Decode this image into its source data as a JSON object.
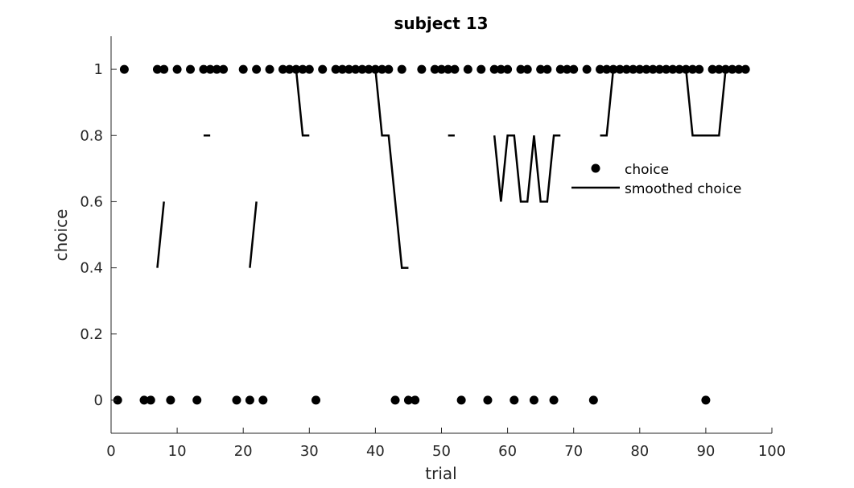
{
  "chart_data": {
    "type": "line",
    "title": "subject 13",
    "xlabel": "trial",
    "ylabel": "choice",
    "xlim": [
      0,
      100
    ],
    "ylim": [
      -0.1,
      1.1
    ],
    "xticks": [
      0,
      10,
      20,
      30,
      40,
      50,
      60,
      70,
      80,
      90,
      100
    ],
    "xtick_labels": [
      "0",
      "10",
      "20",
      "30",
      "40",
      "50",
      "60",
      "70",
      "80",
      "90",
      "100"
    ],
    "yticks": [
      0,
      0.2,
      0.4,
      0.6,
      0.8,
      1
    ],
    "ytick_labels": [
      "0",
      "0.2",
      "0.4",
      "0.6",
      "0.8",
      "1"
    ],
    "grid": false,
    "legend_position": "right",
    "colors": {
      "marker": "#000000",
      "line": "#000000",
      "axis": "#262626"
    },
    "series": [
      {
        "name": "choice",
        "type": "scatter",
        "x": [
          1,
          2,
          3,
          4,
          5,
          6,
          7,
          8,
          9,
          10,
          11,
          12,
          13,
          14,
          15,
          16,
          17,
          18,
          19,
          20,
          21,
          22,
          23,
          24,
          25,
          26,
          27,
          28,
          29,
          30,
          31,
          32,
          33,
          34,
          35,
          36,
          37,
          38,
          39,
          40,
          41,
          42,
          43,
          44,
          45,
          46,
          47,
          48,
          49,
          50,
          51,
          52,
          53,
          54,
          55,
          56,
          57,
          58,
          59,
          60,
          61,
          62,
          63,
          64,
          65,
          66,
          67,
          68,
          69,
          70,
          71,
          72,
          73,
          74,
          75,
          76,
          77,
          78,
          79,
          80,
          81,
          82,
          83,
          84,
          85,
          86,
          87,
          88,
          89,
          90,
          91,
          92,
          93,
          94,
          95,
          96
        ],
        "values": [
          0,
          1,
          null,
          null,
          0,
          0,
          1,
          1,
          0,
          1,
          null,
          1,
          0,
          1,
          1,
          1,
          1,
          null,
          0,
          1,
          0,
          1,
          0,
          1,
          null,
          1,
          1,
          1,
          1,
          1,
          0,
          1,
          null,
          1,
          1,
          1,
          1,
          1,
          1,
          1,
          1,
          1,
          0,
          1,
          0,
          0,
          1,
          null,
          1,
          1,
          1,
          1,
          0,
          1,
          null,
          1,
          0,
          1,
          1,
          1,
          0,
          1,
          1,
          0,
          1,
          1,
          0,
          1,
          1,
          1,
          null,
          1,
          0,
          1,
          1,
          1,
          1,
          1,
          1,
          1,
          1,
          1,
          1,
          1,
          1,
          1,
          1,
          1,
          1,
          0,
          1,
          1,
          1,
          1,
          1,
          1
        ]
      },
      {
        "name": "smoothed choice",
        "type": "line",
        "segments": [
          [
            [
              7,
              0.4
            ],
            [
              8,
              0.6
            ]
          ],
          [
            [
              14,
              0.8
            ],
            [
              15,
              0.8
            ]
          ],
          [
            [
              21,
              0.4
            ],
            [
              22,
              0.6
            ]
          ],
          [
            [
              28,
              1
            ],
            [
              29,
              0.8
            ],
            [
              30,
              0.8
            ]
          ],
          [
            [
              40,
              1
            ],
            [
              41,
              0.8
            ],
            [
              42,
              0.8
            ],
            [
              43,
              0.6
            ],
            [
              44,
              0.4
            ],
            [
              45,
              0.4
            ]
          ],
          [
            [
              51,
              0.8
            ],
            [
              52,
              0.8
            ]
          ],
          [
            [
              58,
              0.8
            ],
            [
              59,
              0.6
            ],
            [
              60,
              0.8
            ],
            [
              61,
              0.8
            ],
            [
              62,
              0.6
            ],
            [
              63,
              0.6
            ],
            [
              64,
              0.8
            ],
            [
              65,
              0.6
            ],
            [
              66,
              0.6
            ],
            [
              67,
              0.8
            ],
            [
              68,
              0.8
            ]
          ],
          [
            [
              74,
              0.8
            ],
            [
              75,
              0.8
            ],
            [
              76,
              1
            ],
            [
              87,
              1
            ],
            [
              88,
              0.8
            ],
            [
              92,
              0.8
            ],
            [
              93,
              1
            ],
            [
              96,
              1
            ]
          ]
        ]
      }
    ]
  }
}
